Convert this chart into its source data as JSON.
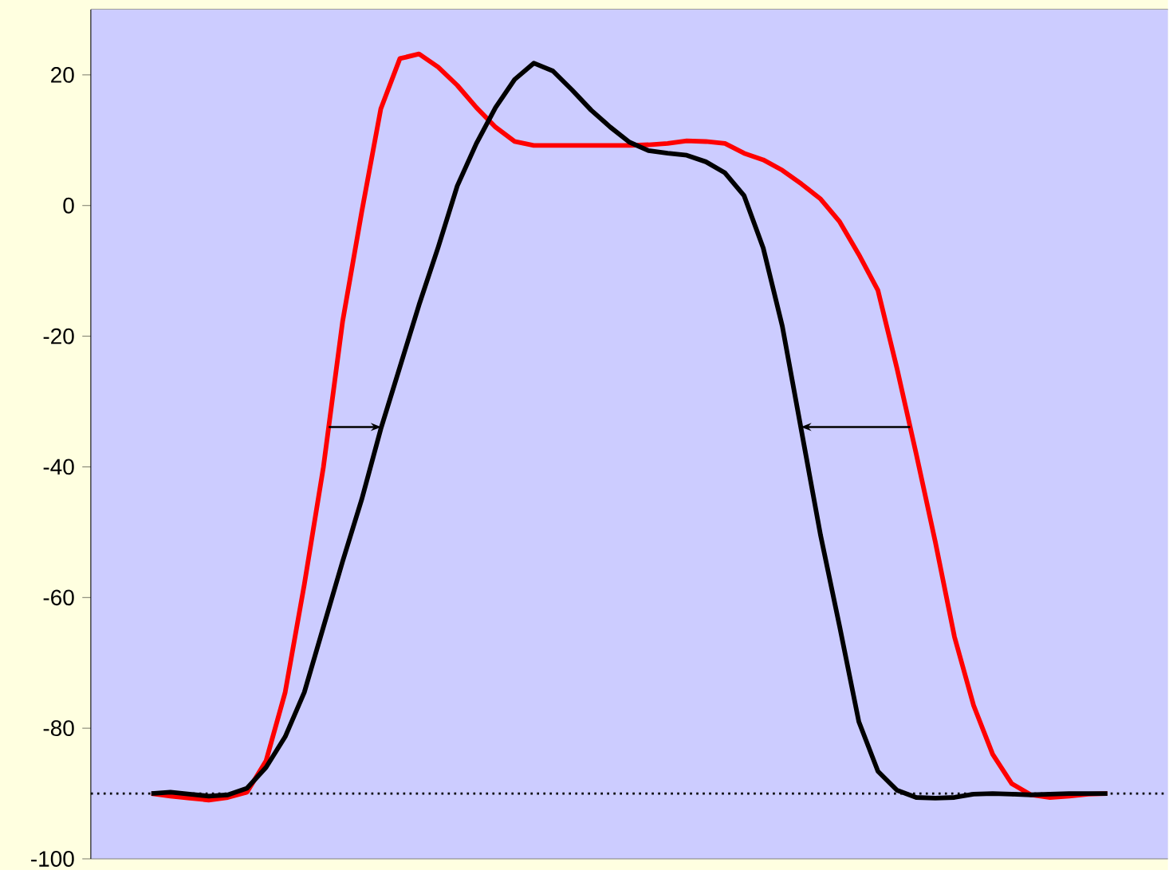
{
  "chart_data": {
    "type": "line",
    "categories": [
      null,
      null,
      null,
      null,
      null,
      null,
      null,
      null,
      null,
      null,
      null,
      null,
      null,
      null,
      null,
      null,
      null,
      null,
      null,
      null,
      null,
      null,
      null,
      null,
      null,
      null,
      null,
      null,
      null,
      null,
      null,
      null,
      null,
      null,
      null,
      null,
      null,
      null,
      null,
      null,
      null,
      null,
      null,
      null,
      null,
      null,
      null,
      null,
      null,
      null,
      null
    ],
    "series": [
      {
        "color": "#ff0000",
        "values": [
          -90,
          -90.4,
          -90.7,
          -91,
          -90.6,
          -89.8,
          -85,
          -74.5,
          -58,
          -40,
          -17.8,
          -1,
          14.8,
          22.5,
          23.2,
          21.2,
          18.4,
          15,
          12,
          9.8,
          9.2,
          9.2,
          9.2,
          9.2,
          9.2,
          9.2,
          9.3,
          9.5,
          9.9,
          9.8,
          9.5,
          8,
          7,
          5.4,
          3.3,
          1,
          -2.5,
          -7.5,
          -13,
          -25,
          -38,
          -51.5,
          -66,
          -76.5,
          -84,
          -88.5,
          -90.2,
          -90.6,
          -90.4,
          -90.1,
          -90
        ]
      },
      {
        "color": "#000000",
        "values": [
          -90,
          -89.8,
          -90.1,
          -90.4,
          -90.2,
          -89.2,
          -86,
          -81.3,
          -74.5,
          -64.5,
          -54.5,
          -45,
          -34.2,
          -24.7,
          -15.2,
          -6.4,
          3,
          9.5,
          15,
          19.3,
          21.8,
          20.6,
          17.7,
          14.6,
          12,
          9.7,
          8.4,
          8,
          7.7,
          6.7,
          5,
          1.5,
          -6.5,
          -18.5,
          -34.5,
          -50.5,
          -64.5,
          -79,
          -86.6,
          -89.5,
          -90.6,
          -90.7,
          -90.6,
          -90.1,
          -90,
          -90.1,
          -90.2,
          -90.1,
          -90,
          -90,
          -90
        ]
      }
    ],
    "ylim": [
      -100,
      30
    ],
    "yticks": [
      -100,
      -80,
      -60,
      -40,
      -20,
      0,
      20
    ],
    "ref_lines": [
      {
        "axis": "y",
        "value": -90,
        "color": "#000000",
        "line_style": "dotted"
      }
    ],
    "marker": "none",
    "line_style": "solid",
    "grid": false
  }
}
